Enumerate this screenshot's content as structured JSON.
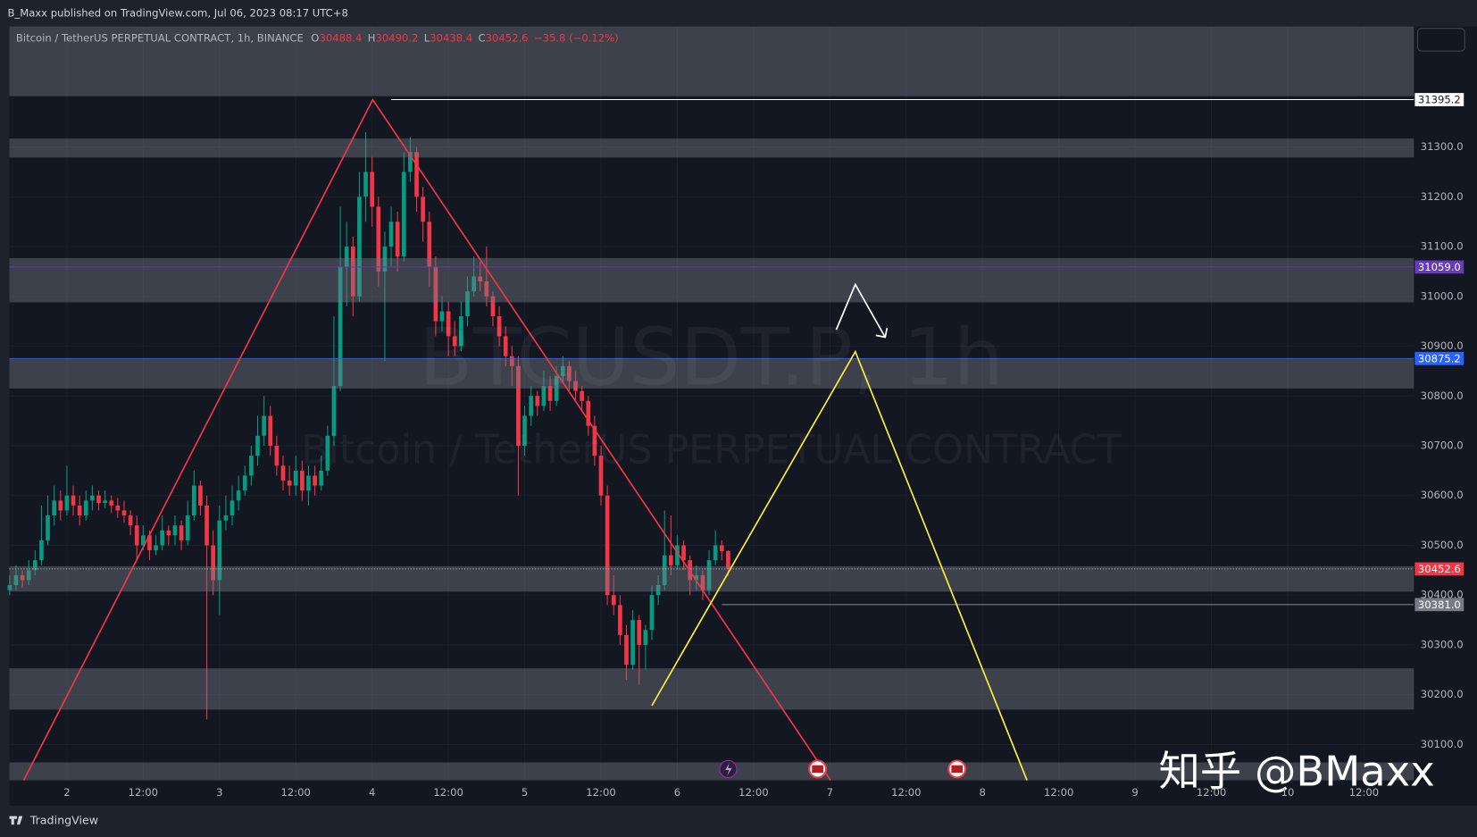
{
  "header": {
    "publisher": "B_Maxx published on TradingView.com, Jul 06, 2023 08:17 UTC+8"
  },
  "footer": {
    "brand": "TradingView",
    "watermark": "知乎 @BMaxx"
  },
  "chart_data": {
    "type": "candlestick",
    "title": "Bitcoin / TetherUS PERPETUAL CONTRACT, 1h, BINANCE",
    "legend_letters": [
      "O",
      "H",
      "L",
      "C"
    ],
    "change_label": "−35.8 (−0.12%)",
    "watermark": {
      "symbol": "BTCUSDT.P, 1h",
      "description": "Bitcoin / TetherUS PERPETUAL CONTRACT"
    },
    "up_color": "#089981",
    "down_color": "#f23645",
    "grid": true,
    "xlim": [
      -9.04,
      211.85
    ],
    "ylim": [
      30028,
      31542
    ],
    "xticks": [
      {
        "value": 0,
        "label": "2"
      },
      {
        "value": 12,
        "label": "12:00"
      },
      {
        "value": 24,
        "label": "3"
      },
      {
        "value": 36,
        "label": "12:00"
      },
      {
        "value": 48,
        "label": "4"
      },
      {
        "value": 60,
        "label": "12:00"
      },
      {
        "value": 72,
        "label": "5"
      },
      {
        "value": 84,
        "label": "12:00"
      },
      {
        "value": 96,
        "label": "6"
      },
      {
        "value": 108,
        "label": "12:00"
      },
      {
        "value": 120,
        "label": "7"
      },
      {
        "value": 132,
        "label": "12:00"
      },
      {
        "value": 144,
        "label": "8"
      },
      {
        "value": 156,
        "label": "12:00"
      },
      {
        "value": 168,
        "label": "9"
      },
      {
        "value": 180,
        "label": "12:00"
      },
      {
        "value": 192,
        "label": "10"
      },
      {
        "value": 204,
        "label": "12:00"
      }
    ],
    "yticks": [
      {
        "value": 30100,
        "label": "30100.0"
      },
      {
        "value": 30200,
        "label": "30200.0"
      },
      {
        "value": 30300,
        "label": "30300.0"
      },
      {
        "value": 30400,
        "label": "30400.0"
      },
      {
        "value": 30500,
        "label": "30500.0"
      },
      {
        "value": 30600,
        "label": "30600.0"
      },
      {
        "value": 30700,
        "label": "30700.0"
      },
      {
        "value": 30800,
        "label": "30800.0"
      },
      {
        "value": 30900,
        "label": "30900.0"
      },
      {
        "value": 31000,
        "label": "31000.0"
      },
      {
        "value": 31100,
        "label": "31100.0"
      },
      {
        "value": 31200,
        "label": "31200.0"
      },
      {
        "value": 31300,
        "label": "31300.0"
      }
    ],
    "x": [
      -9,
      -8,
      -7,
      -6,
      -5,
      -4,
      -3,
      -2,
      -1,
      0,
      1,
      2,
      3,
      4,
      5,
      6,
      7,
      8,
      9,
      10,
      11,
      12,
      13,
      14,
      15,
      16,
      17,
      18,
      19,
      20,
      21,
      22,
      23,
      24,
      25,
      26,
      27,
      28,
      29,
      30,
      31,
      32,
      33,
      34,
      35,
      36,
      37,
      38,
      39,
      40,
      41,
      42,
      43,
      44,
      45,
      46,
      47,
      48,
      49,
      50,
      51,
      52,
      53,
      54,
      55,
      56,
      57,
      58,
      59,
      60,
      61,
      62,
      63,
      64,
      65,
      66,
      67,
      68,
      69,
      70,
      71,
      72,
      73,
      74,
      75,
      76,
      77,
      78,
      79,
      80,
      81,
      82,
      83,
      84,
      85,
      86,
      87,
      88,
      89,
      90,
      91,
      92,
      93,
      94,
      95,
      96,
      97,
      98,
      99,
      100,
      101,
      102,
      103,
      104
    ],
    "candles": [
      [
        30410,
        30440,
        30400,
        30420
      ],
      [
        30420,
        30460,
        30410,
        30440
      ],
      [
        30440,
        30450,
        30415,
        30430
      ],
      [
        30430,
        30470,
        30420,
        30450
      ],
      [
        30450,
        30490,
        30440,
        30470
      ],
      [
        30470,
        30580,
        30460,
        30510
      ],
      [
        30510,
        30600,
        30500,
        30560
      ],
      [
        30560,
        30620,
        30540,
        30590
      ],
      [
        30590,
        30610,
        30550,
        30570
      ],
      [
        30570,
        30660,
        30560,
        30600
      ],
      [
        30600,
        30620,
        30560,
        30580
      ],
      [
        30580,
        30600,
        30540,
        30560
      ],
      [
        30560,
        30610,
        30550,
        30590
      ],
      [
        30590,
        30620,
        30570,
        30600
      ],
      [
        30600,
        30610,
        30570,
        30585
      ],
      [
        30585,
        30610,
        30575,
        30590
      ],
      [
        30590,
        30600,
        30565,
        30580
      ],
      [
        30580,
        30595,
        30555,
        30570
      ],
      [
        30570,
        30590,
        30545,
        30560
      ],
      [
        30560,
        30570,
        30520,
        30540
      ],
      [
        30540,
        30560,
        30470,
        30500
      ],
      [
        30500,
        30540,
        30490,
        30520
      ],
      [
        30520,
        30530,
        30470,
        30490
      ],
      [
        30490,
        30520,
        30480,
        30500
      ],
      [
        30500,
        30560,
        30490,
        30530
      ],
      [
        30530,
        30540,
        30500,
        30520
      ],
      [
        30520,
        30560,
        30500,
        30540
      ],
      [
        30540,
        30550,
        30490,
        30510
      ],
      [
        30510,
        30590,
        30500,
        30560
      ],
      [
        30560,
        30650,
        30550,
        30620
      ],
      [
        30620,
        30630,
        30560,
        30580
      ],
      [
        30580,
        30600,
        30150,
        30500
      ],
      [
        30500,
        30530,
        30400,
        30430
      ],
      [
        30430,
        30580,
        30360,
        30550
      ],
      [
        30550,
        30600,
        30530,
        30560
      ],
      [
        30560,
        30620,
        30540,
        30590
      ],
      [
        30590,
        30640,
        30570,
        30610
      ],
      [
        30610,
        30660,
        30600,
        30640
      ],
      [
        30640,
        30700,
        30620,
        30680
      ],
      [
        30680,
        30760,
        30660,
        30720
      ],
      [
        30720,
        30800,
        30700,
        30760
      ],
      [
        30760,
        30780,
        30680,
        30700
      ],
      [
        30700,
        30720,
        30640,
        30660
      ],
      [
        30660,
        30680,
        30610,
        30630
      ],
      [
        30630,
        30660,
        30600,
        30620
      ],
      [
        30620,
        30680,
        30600,
        30650
      ],
      [
        30650,
        30670,
        30590,
        30610
      ],
      [
        30610,
        30660,
        30580,
        30640
      ],
      [
        30640,
        30660,
        30600,
        30620
      ],
      [
        30620,
        30680,
        30610,
        30650
      ],
      [
        30650,
        30740,
        30640,
        30720
      ],
      [
        30720,
        30960,
        30700,
        30820
      ],
      [
        30820,
        31180,
        30810,
        31060
      ],
      [
        31060,
        31150,
        30980,
        31100
      ],
      [
        31100,
        31120,
        30960,
        31000
      ],
      [
        31000,
        31250,
        30990,
        31200
      ],
      [
        31200,
        31330,
        31150,
        31250
      ],
      [
        31250,
        31280,
        31140,
        31180
      ],
      [
        31180,
        31200,
        31020,
        31050
      ],
      [
        31050,
        31130,
        30870,
        31100
      ],
      [
        31100,
        31180,
        31060,
        31150
      ],
      [
        31150,
        31170,
        31050,
        31080
      ],
      [
        31080,
        31290,
        31070,
        31250
      ],
      [
        31250,
        31320,
        31230,
        31290
      ],
      [
        31290,
        31300,
        31170,
        31200
      ],
      [
        31200,
        31220,
        31110,
        31150
      ],
      [
        31150,
        31170,
        31020,
        31060
      ],
      [
        31060,
        31080,
        30920,
        30950
      ],
      [
        30950,
        31000,
        30930,
        30970
      ],
      [
        30970,
        30990,
        30880,
        30920
      ],
      [
        30920,
        30950,
        30880,
        30900
      ],
      [
        30900,
        30990,
        30890,
        30960
      ],
      [
        30960,
        31040,
        30940,
        31010
      ],
      [
        31010,
        31080,
        31000,
        31040
      ],
      [
        31040,
        31070,
        31010,
        31030
      ],
      [
        31030,
        31100,
        30980,
        31000
      ],
      [
        31000,
        31010,
        30940,
        30960
      ],
      [
        30960,
        30980,
        30900,
        30920
      ],
      [
        30920,
        30940,
        30860,
        30880
      ],
      [
        30880,
        30900,
        30820,
        30860
      ],
      [
        30860,
        30880,
        30600,
        30700
      ],
      [
        30700,
        30780,
        30680,
        30760
      ],
      [
        30760,
        30820,
        30740,
        30800
      ],
      [
        30800,
        30810,
        30760,
        30780
      ],
      [
        30780,
        30850,
        30770,
        30820
      ],
      [
        30820,
        30840,
        30770,
        30790
      ],
      [
        30790,
        30860,
        30780,
        30840
      ],
      [
        30840,
        30880,
        30830,
        30860
      ],
      [
        30860,
        30870,
        30810,
        30830
      ],
      [
        30830,
        30850,
        30790,
        30810
      ],
      [
        30810,
        30820,
        30770,
        30790
      ],
      [
        30790,
        30800,
        30720,
        30740
      ],
      [
        30740,
        30760,
        30660,
        30680
      ],
      [
        30680,
        30700,
        30580,
        30600
      ],
      [
        30600,
        30620,
        30380,
        30400
      ],
      [
        30400,
        30440,
        30360,
        30380
      ],
      [
        30380,
        30400,
        30300,
        30320
      ],
      [
        30320,
        30340,
        30230,
        30260
      ],
      [
        30260,
        30370,
        30250,
        30350
      ],
      [
        30350,
        30360,
        30220,
        30300
      ],
      [
        30300,
        30340,
        30250,
        30330
      ],
      [
        30330,
        30420,
        30310,
        30400
      ],
      [
        30400,
        30440,
        30380,
        30420
      ],
      [
        30420,
        30570,
        30410,
        30480
      ],
      [
        30480,
        30560,
        30440,
        30460
      ],
      [
        30460,
        30520,
        30450,
        30500
      ],
      [
        30500,
        30510,
        30450,
        30470
      ],
      [
        30470,
        30480,
        30400,
        30430
      ],
      [
        30430,
        30460,
        30410,
        30440
      ],
      [
        30440,
        30450,
        30390,
        30410
      ],
      [
        30410,
        30490,
        30400,
        30470
      ],
      [
        30470,
        30530,
        30460,
        30500
      ],
      [
        30500,
        30510,
        30470,
        30488.4
      ],
      [
        30488.4,
        30490.2,
        30438.4,
        30452.6
      ]
    ],
    "zones": [
      [
        31402,
        31542
      ],
      [
        31279,
        31317
      ],
      [
        30988,
        31077
      ],
      [
        30815,
        30874
      ],
      [
        30407,
        30458
      ],
      [
        30170,
        30253
      ],
      [
        30028,
        30064
      ]
    ],
    "price_lines": [
      {
        "value": 31395.2,
        "label": "31395.2",
        "color": "#ffffff",
        "start": 51,
        "style": "solid"
      },
      {
        "value": 31059,
        "label": "31059.0",
        "color": "#673ab7",
        "style": "solid"
      },
      {
        "value": 30875.2,
        "label": "30875.2",
        "color": "#2962ff",
        "style": "solid"
      },
      {
        "value": 30452.6,
        "label": "30452.6",
        "color": "#f23645",
        "style": "dotted"
      },
      {
        "value": 30381,
        "label": "30381.0",
        "color": "#787b86",
        "start": 103,
        "style": "solid"
      }
    ],
    "drawings": [
      {
        "color": "#f23645",
        "x": [
          -6.8,
          48.1,
          120.1
        ],
        "y": [
          30028,
          31395,
          30028
        ]
      },
      {
        "color": "#ffeb3b",
        "x": [
          92,
          124,
          151
        ],
        "y": [
          30178,
          30889,
          30028
        ]
      },
      {
        "color": "#ffffff",
        "x": [
          121,
          124,
          128.7
        ],
        "y": [
          30933,
          31024,
          30918
        ]
      }
    ]
  }
}
